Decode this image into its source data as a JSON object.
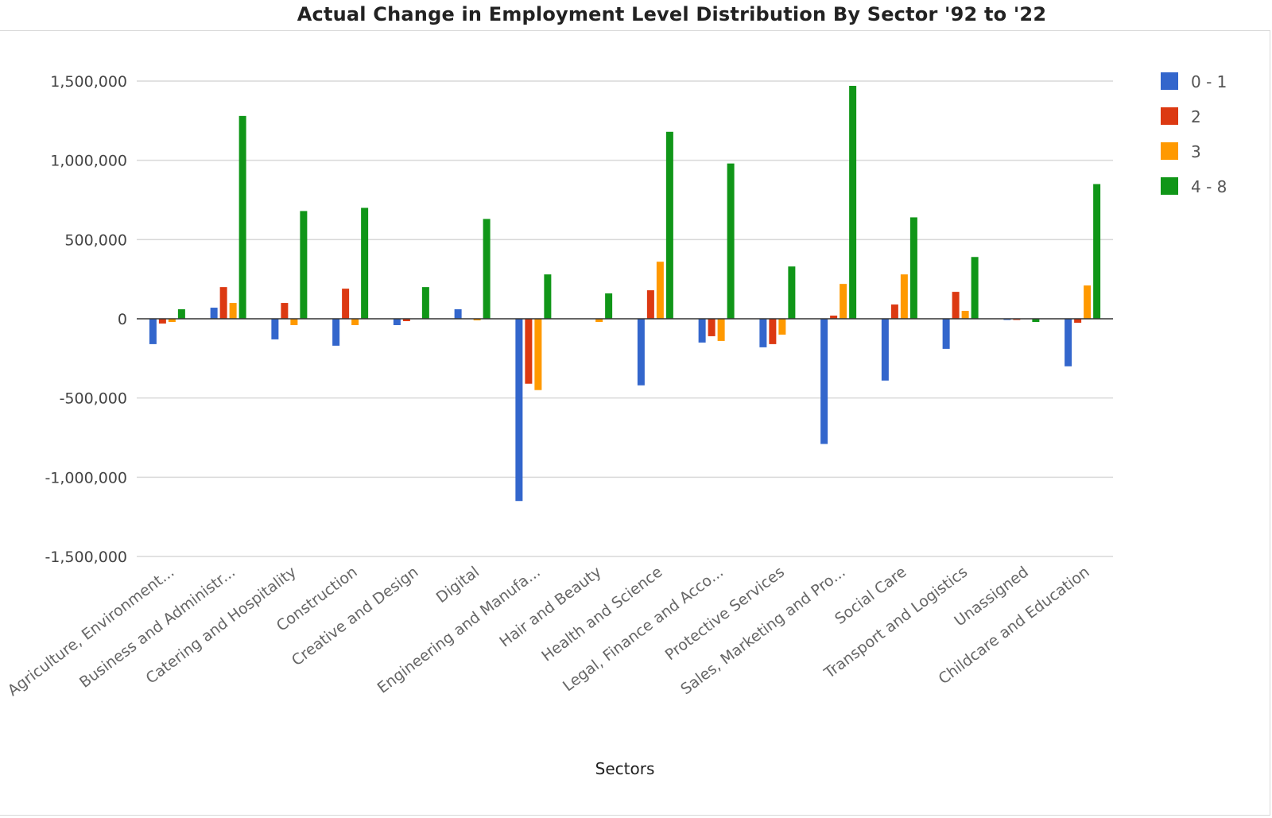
{
  "chart_data": {
    "type": "bar",
    "title": "Actual Change in Employment Level Distribution By Sector '92 to '22",
    "xlabel": "Sectors",
    "ylabel": "",
    "ylim": [
      -1500000,
      1500000
    ],
    "yticks": [
      1500000,
      1000000,
      500000,
      0,
      -500000,
      -1000000,
      -1500000
    ],
    "ytick_labels": [
      "1,500,000",
      "1,000,000",
      "500,000",
      "0",
      "-500,000",
      "-1,000,000",
      "-1,500,000"
    ],
    "grid": true,
    "legend_position": "right",
    "categories": [
      "Agriculture, Environment...",
      "Business and Administr...",
      "Catering and Hospitality",
      "Construction",
      "Creative and Design",
      "Digital",
      "Engineering and Manufa...",
      "Hair and Beauty",
      "Health and Science",
      "Legal, Finance and Acco...",
      "Protective Services",
      "Sales, Marketing and Pro...",
      "Social Care",
      "Transport and Logistics",
      "Unassigned",
      "Childcare and Education"
    ],
    "series": [
      {
        "name": "0 - 1",
        "color": "#3366cc",
        "values": [
          -160000,
          70000,
          -130000,
          -170000,
          -40000,
          60000,
          -1150000,
          0,
          -420000,
          -150000,
          -180000,
          -790000,
          -390000,
          -190000,
          -5000,
          -300000
        ]
      },
      {
        "name": "2",
        "color": "#dc3912",
        "values": [
          -30000,
          200000,
          100000,
          190000,
          -15000,
          0,
          -410000,
          0,
          180000,
          -110000,
          -160000,
          20000,
          90000,
          170000,
          -5000,
          -25000
        ]
      },
      {
        "name": "3",
        "color": "#ff9900",
        "values": [
          -20000,
          100000,
          -40000,
          -40000,
          0,
          -10000,
          -450000,
          -20000,
          360000,
          -140000,
          -100000,
          220000,
          280000,
          50000,
          0,
          210000
        ]
      },
      {
        "name": "4 - 8",
        "color": "#109618",
        "values": [
          60000,
          1280000,
          680000,
          700000,
          200000,
          630000,
          280000,
          160000,
          1180000,
          980000,
          330000,
          1470000,
          640000,
          390000,
          -20000,
          850000
        ]
      }
    ]
  }
}
